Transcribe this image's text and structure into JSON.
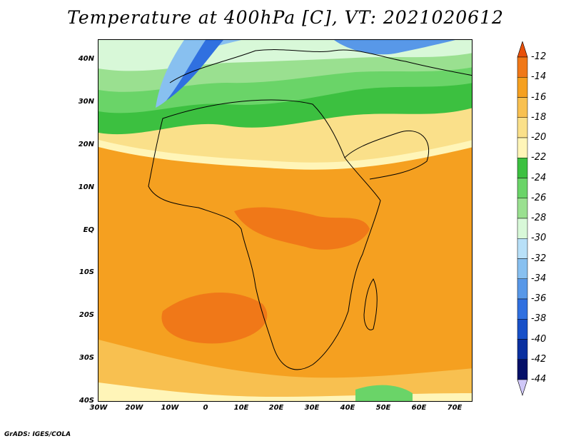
{
  "title": "Temperature at 400hPa [C], VT: 2021020612",
  "credit": "GrADS: IGES/COLA",
  "map": {
    "lat_labels": [
      "40N",
      "30N",
      "20N",
      "10N",
      "EQ",
      "10S",
      "20S",
      "30S",
      "40S"
    ],
    "lon_labels": [
      "30W",
      "20W",
      "10W",
      "0",
      "10E",
      "20E",
      "30E",
      "40E",
      "50E",
      "60E",
      "70E"
    ]
  },
  "colorbar": {
    "levels": [
      "-12",
      "-14",
      "-16",
      "-18",
      "-20",
      "-22",
      "-24",
      "-26",
      "-28",
      "-30",
      "-32",
      "-34",
      "-36",
      "-38",
      "-40",
      "-42",
      "-44"
    ],
    "colors": [
      "#e8500a",
      "#f07818",
      "#f5a020",
      "#f8c050",
      "#fae08a",
      "#fff5b8",
      "#3cc040",
      "#6ad468",
      "#9ae090",
      "#d8f8d8",
      "#b8e0f8",
      "#88c0f0",
      "#5898e8",
      "#3070e0",
      "#1850c8",
      "#0a30a0",
      "#051068"
    ],
    "top_arrow_color": "#e8500a",
    "bottom_arrow_color": "#d0c8f8"
  }
}
